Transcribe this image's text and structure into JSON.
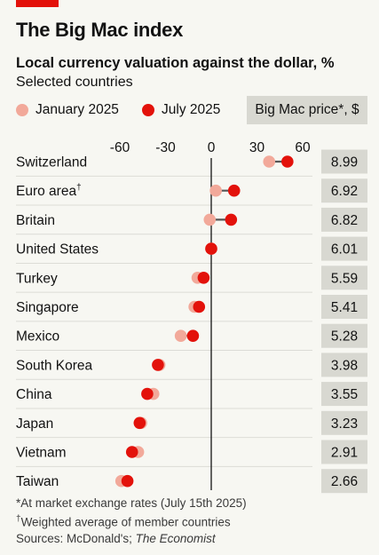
{
  "title": "The Big Mac index",
  "subtitle": "Local currency valuation against the dollar, %",
  "subsubtitle": "Selected countries",
  "legend": {
    "jan": "January 2025",
    "jul": "July 2025"
  },
  "price_header": "Big Mac price*, $",
  "footnotes": {
    "star": "*At market exchange rates (July 15th 2025)",
    "dagger_mark": "†",
    "dagger": "Weighted average of member countries",
    "sources_prefix": "Sources: McDonald's; ",
    "sources_italic": "The Economist"
  },
  "colors": {
    "jan": "#f2a99a",
    "jul": "#e3120b",
    "price_bg": "#d8d8d1",
    "connector": "#555555"
  },
  "chart_data": {
    "type": "dot",
    "title": "The Big Mac index",
    "subtitle": "Local currency valuation against the dollar, %",
    "xlim": [
      -60,
      60
    ],
    "xticks": [
      -60,
      -30,
      0,
      30,
      60
    ],
    "series_names": [
      "January 2025",
      "July 2025"
    ],
    "rows": [
      {
        "country": "Switzerland",
        "dagger": false,
        "jan": 38,
        "jul": 50,
        "price": "8.99"
      },
      {
        "country": "Euro area",
        "dagger": true,
        "jan": 3,
        "jul": 15,
        "price": "6.92"
      },
      {
        "country": "Britain",
        "dagger": false,
        "jan": -1,
        "jul": 13,
        "price": "6.82"
      },
      {
        "country": "United States",
        "dagger": false,
        "jan": 0,
        "jul": 0,
        "price": "6.01"
      },
      {
        "country": "Turkey",
        "dagger": false,
        "jan": -9,
        "jul": -5,
        "price": "5.59"
      },
      {
        "country": "Singapore",
        "dagger": false,
        "jan": -11,
        "jul": -8,
        "price": "5.41"
      },
      {
        "country": "Mexico",
        "dagger": false,
        "jan": -20,
        "jul": -12,
        "price": "5.28"
      },
      {
        "country": "South Korea",
        "dagger": false,
        "jan": -34,
        "jul": -35,
        "price": "3.98"
      },
      {
        "country": "China",
        "dagger": false,
        "jan": -38,
        "jul": -42,
        "price": "3.55"
      },
      {
        "country": "Japan",
        "dagger": false,
        "jan": -46,
        "jul": -47,
        "price": "3.23"
      },
      {
        "country": "Vietnam",
        "dagger": false,
        "jan": -48,
        "jul": -52,
        "price": "2.91"
      },
      {
        "country": "Taiwan",
        "dagger": false,
        "jan": -59,
        "jul": -55,
        "price": "2.66"
      }
    ]
  }
}
